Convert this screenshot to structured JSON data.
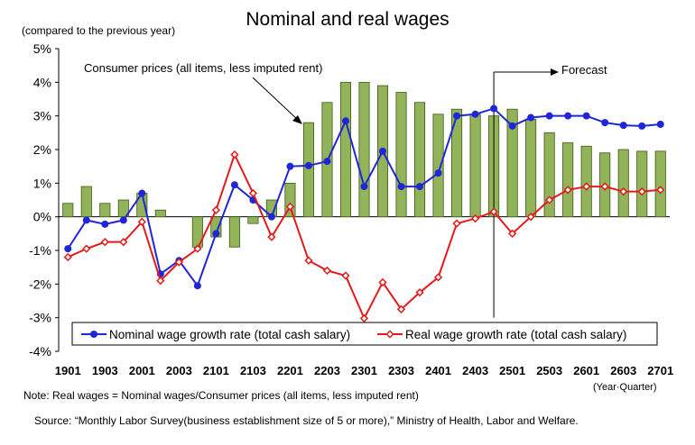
{
  "chart_data": {
    "type": "bar",
    "title": "Nominal and real wages",
    "subtitle": "(compared to the previous year)",
    "x_unit_label": "(Year·Quarter)",
    "ylim": [
      -4,
      5
    ],
    "y_ticks": [
      "-4%",
      "-3%",
      "-2%",
      "-1%",
      "0%",
      "1%",
      "2%",
      "3%",
      "4%",
      "5%"
    ],
    "y_tick_values": [
      -4,
      -3,
      -2,
      -1,
      0,
      1,
      2,
      3,
      4,
      5
    ],
    "grid": false,
    "legend_position": "bottom",
    "categories": [
      "1901",
      "1902",
      "1903",
      "1904",
      "2001",
      "2002",
      "2003",
      "2004",
      "2101",
      "2102",
      "2103",
      "2104",
      "2201",
      "2202",
      "2203",
      "2204",
      "2301",
      "2302",
      "2303",
      "2304",
      "2401",
      "2402",
      "2403",
      "2404",
      "2501",
      "2502",
      "2503",
      "2504",
      "2601",
      "2602",
      "2603",
      "2604",
      "2701"
    ],
    "x_tick_labels": [
      "1901",
      "1903",
      "2001",
      "2003",
      "2101",
      "2103",
      "2201",
      "2203",
      "2301",
      "2303",
      "2401",
      "2403",
      "2501",
      "2503",
      "2601",
      "2603",
      "2701"
    ],
    "forecast_start": "2404",
    "series": [
      {
        "name": "Consumer prices (all items, less imputed rent)",
        "kind": "bar",
        "color": "#92b35a",
        "values": [
          0.4,
          0.9,
          0.4,
          0.5,
          0.7,
          0.2,
          0,
          -0.9,
          -0.6,
          -0.9,
          -0.2,
          0.5,
          1.0,
          2.8,
          3.4,
          4.0,
          4.0,
          3.9,
          3.7,
          3.4,
          3.05,
          3.2,
          3.05,
          3.0,
          3.2,
          2.9,
          2.5,
          2.2,
          2.1,
          1.9,
          2.0,
          1.95,
          1.95
        ]
      },
      {
        "name": "Nominal wage growth rate (total cash salary)",
        "kind": "line",
        "color": "#1f26d6",
        "values": [
          -0.95,
          -0.1,
          -0.22,
          -0.1,
          0.7,
          -1.7,
          -1.3,
          -2.05,
          -0.5,
          0.95,
          0.5,
          0.0,
          1.5,
          1.52,
          1.65,
          2.85,
          0.9,
          1.95,
          0.9,
          0.9,
          1.3,
          3.0,
          3.05,
          3.22,
          2.7,
          2.95,
          3.0,
          3.0,
          3.0,
          2.8,
          2.72,
          2.7,
          2.75
        ]
      },
      {
        "name": "Real wage growth rate (total cash salary)",
        "kind": "line",
        "color": "#e31b1b",
        "values": [
          -1.2,
          -0.95,
          -0.75,
          -0.75,
          -0.15,
          -1.9,
          -1.35,
          -0.95,
          0.2,
          1.85,
          0.7,
          -0.6,
          0.3,
          -1.3,
          -1.6,
          -1.75,
          -3.02,
          -1.95,
          -2.75,
          -2.25,
          -1.8,
          -0.2,
          -0.05,
          0.15,
          -0.5,
          0.0,
          0.5,
          0.8,
          0.9,
          0.9,
          0.75,
          0.75,
          0.8
        ]
      }
    ],
    "annotations": [
      "Consumer prices (all items, less imputed rent)",
      "Forecast"
    ]
  },
  "footer": {
    "note": "Note: Real wages = Nominal wages/Consumer prices (all items, less imputed rent)",
    "source": "Source: “Monthly Labor Survey(business establishment size of 5 or more),” Ministry of Health, Labor and Welfare."
  }
}
